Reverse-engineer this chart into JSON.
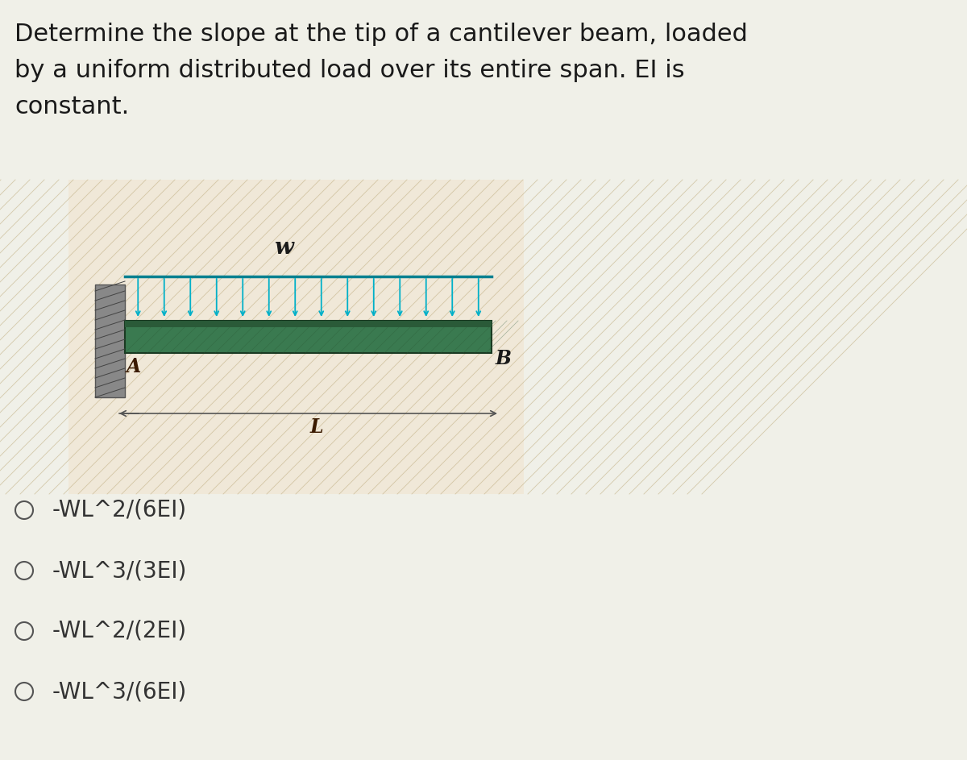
{
  "title_line1": "Determine the slope at the tip of a cantilever beam, loaded",
  "title_line2": "by a uniform distributed load over its entire span. EI is",
  "title_line3": "constant.",
  "page_bg": "#f0f0e8",
  "diagram_bg": "#f0e8d8",
  "beam_color": "#3a7a50",
  "beam_top_color": "#2a5a38",
  "wall_color": "#888888",
  "arrow_color": "#00b0c8",
  "options": [
    "-WL^2/(6EI)",
    "-WL^3/(3EI)",
    "-WL^2/(2EI)",
    "-WL^3/(6EI)"
  ],
  "label_w": "w",
  "label_A": "A",
  "label_B": "B",
  "label_L": "L",
  "title_fontsize": 22,
  "option_fontsize": 20
}
